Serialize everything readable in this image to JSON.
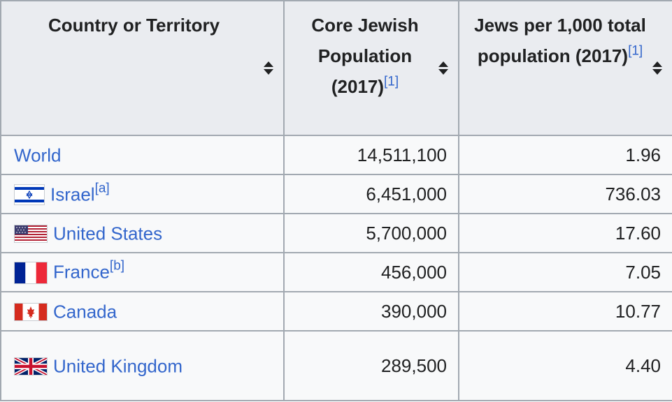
{
  "table": {
    "headers": [
      {
        "text": "Country or Territory",
        "ref": ""
      },
      {
        "text": "Core Jewish Population (2017)",
        "ref": "[1]"
      },
      {
        "text": "Jews per 1,000 total population (2017)",
        "ref": "[1]"
      }
    ],
    "rows": [
      {
        "country": "World",
        "note": "",
        "flag": "",
        "population": "14,511,100",
        "per_1000": "1.96"
      },
      {
        "country": "Israel",
        "note": "[a]",
        "flag": "israel-flag-icon",
        "population": "6,451,000",
        "per_1000": "736.03"
      },
      {
        "country": "United States",
        "note": "",
        "flag": "united-states-flag-icon",
        "population": "5,700,000",
        "per_1000": "17.60"
      },
      {
        "country": "France",
        "note": "[b]",
        "flag": "france-flag-icon",
        "population": "456,000",
        "per_1000": "7.05"
      },
      {
        "country": "Canada",
        "note": "",
        "flag": "canada-flag-icon",
        "population": "390,000",
        "per_1000": "10.77"
      },
      {
        "country": "United Kingdom",
        "note": "",
        "flag": "united-kingdom-flag-icon",
        "population": "289,500",
        "per_1000": "4.40"
      }
    ]
  },
  "colors": {
    "link": "#3366cc",
    "header_bg": "#eaecf0",
    "cell_bg": "#f8f9fa",
    "border": "#a2a9b1"
  }
}
